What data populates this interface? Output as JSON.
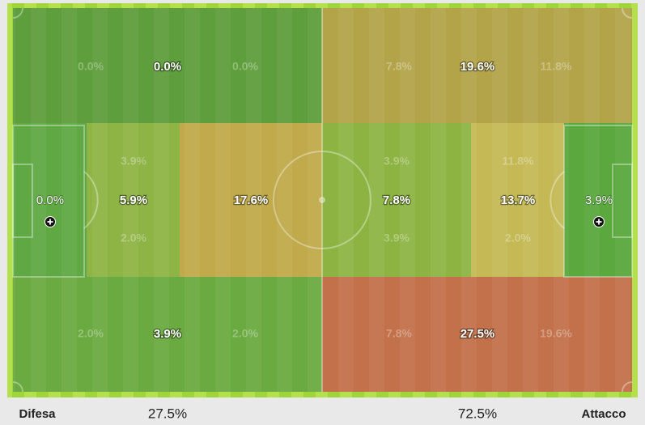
{
  "zones": [
    {
      "value": "0.0%",
      "details": [
        "0.0%",
        "0.0%"
      ]
    },
    {
      "value": "19.6%",
      "details": [
        "7.8%",
        "11.8%"
      ]
    },
    {
      "value": "0.0%",
      "details": []
    },
    {
      "value": "5.9%",
      "details": [
        "3.9%",
        "2.0%"
      ]
    },
    {
      "value": "17.6%",
      "details": []
    },
    {
      "value": "7.8%",
      "details": [
        "3.9%",
        "3.9%"
      ]
    },
    {
      "value": "13.7%",
      "details": [
        "11.8%",
        "2.0%"
      ]
    },
    {
      "value": "3.9%",
      "details": []
    },
    {
      "value": "3.9%",
      "details": [
        "2.0%",
        "2.0%"
      ]
    },
    {
      "value": "27.5%",
      "details": [
        "7.8%",
        "19.6%"
      ]
    }
  ],
  "footer": {
    "left_label": "Difesa",
    "left_value": "27.5%",
    "right_value": "72.5%",
    "right_label": "Attacco"
  }
}
